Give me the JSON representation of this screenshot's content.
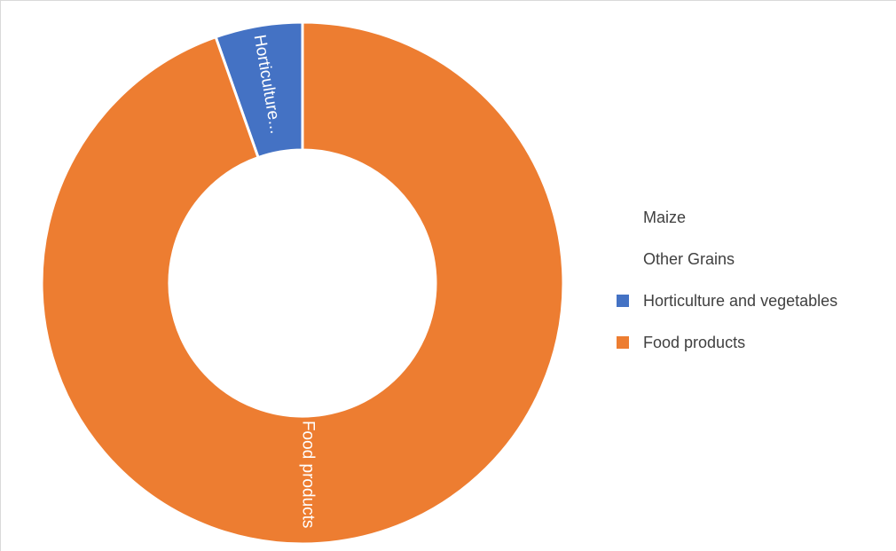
{
  "chart_data": {
    "type": "pie",
    "variant": "donut",
    "categories": [
      "Maize",
      "Other Grains",
      "Horticulture and vegetables",
      "Food products"
    ],
    "values": [
      0,
      0,
      5.4,
      94.6
    ],
    "colors": [
      "#4472c4",
      "#ed7d31",
      "#4472c4",
      "#ed7d31"
    ],
    "slice_labels": [
      "",
      "",
      "Horticulture...",
      "Food products"
    ],
    "legend_position": "right"
  }
}
